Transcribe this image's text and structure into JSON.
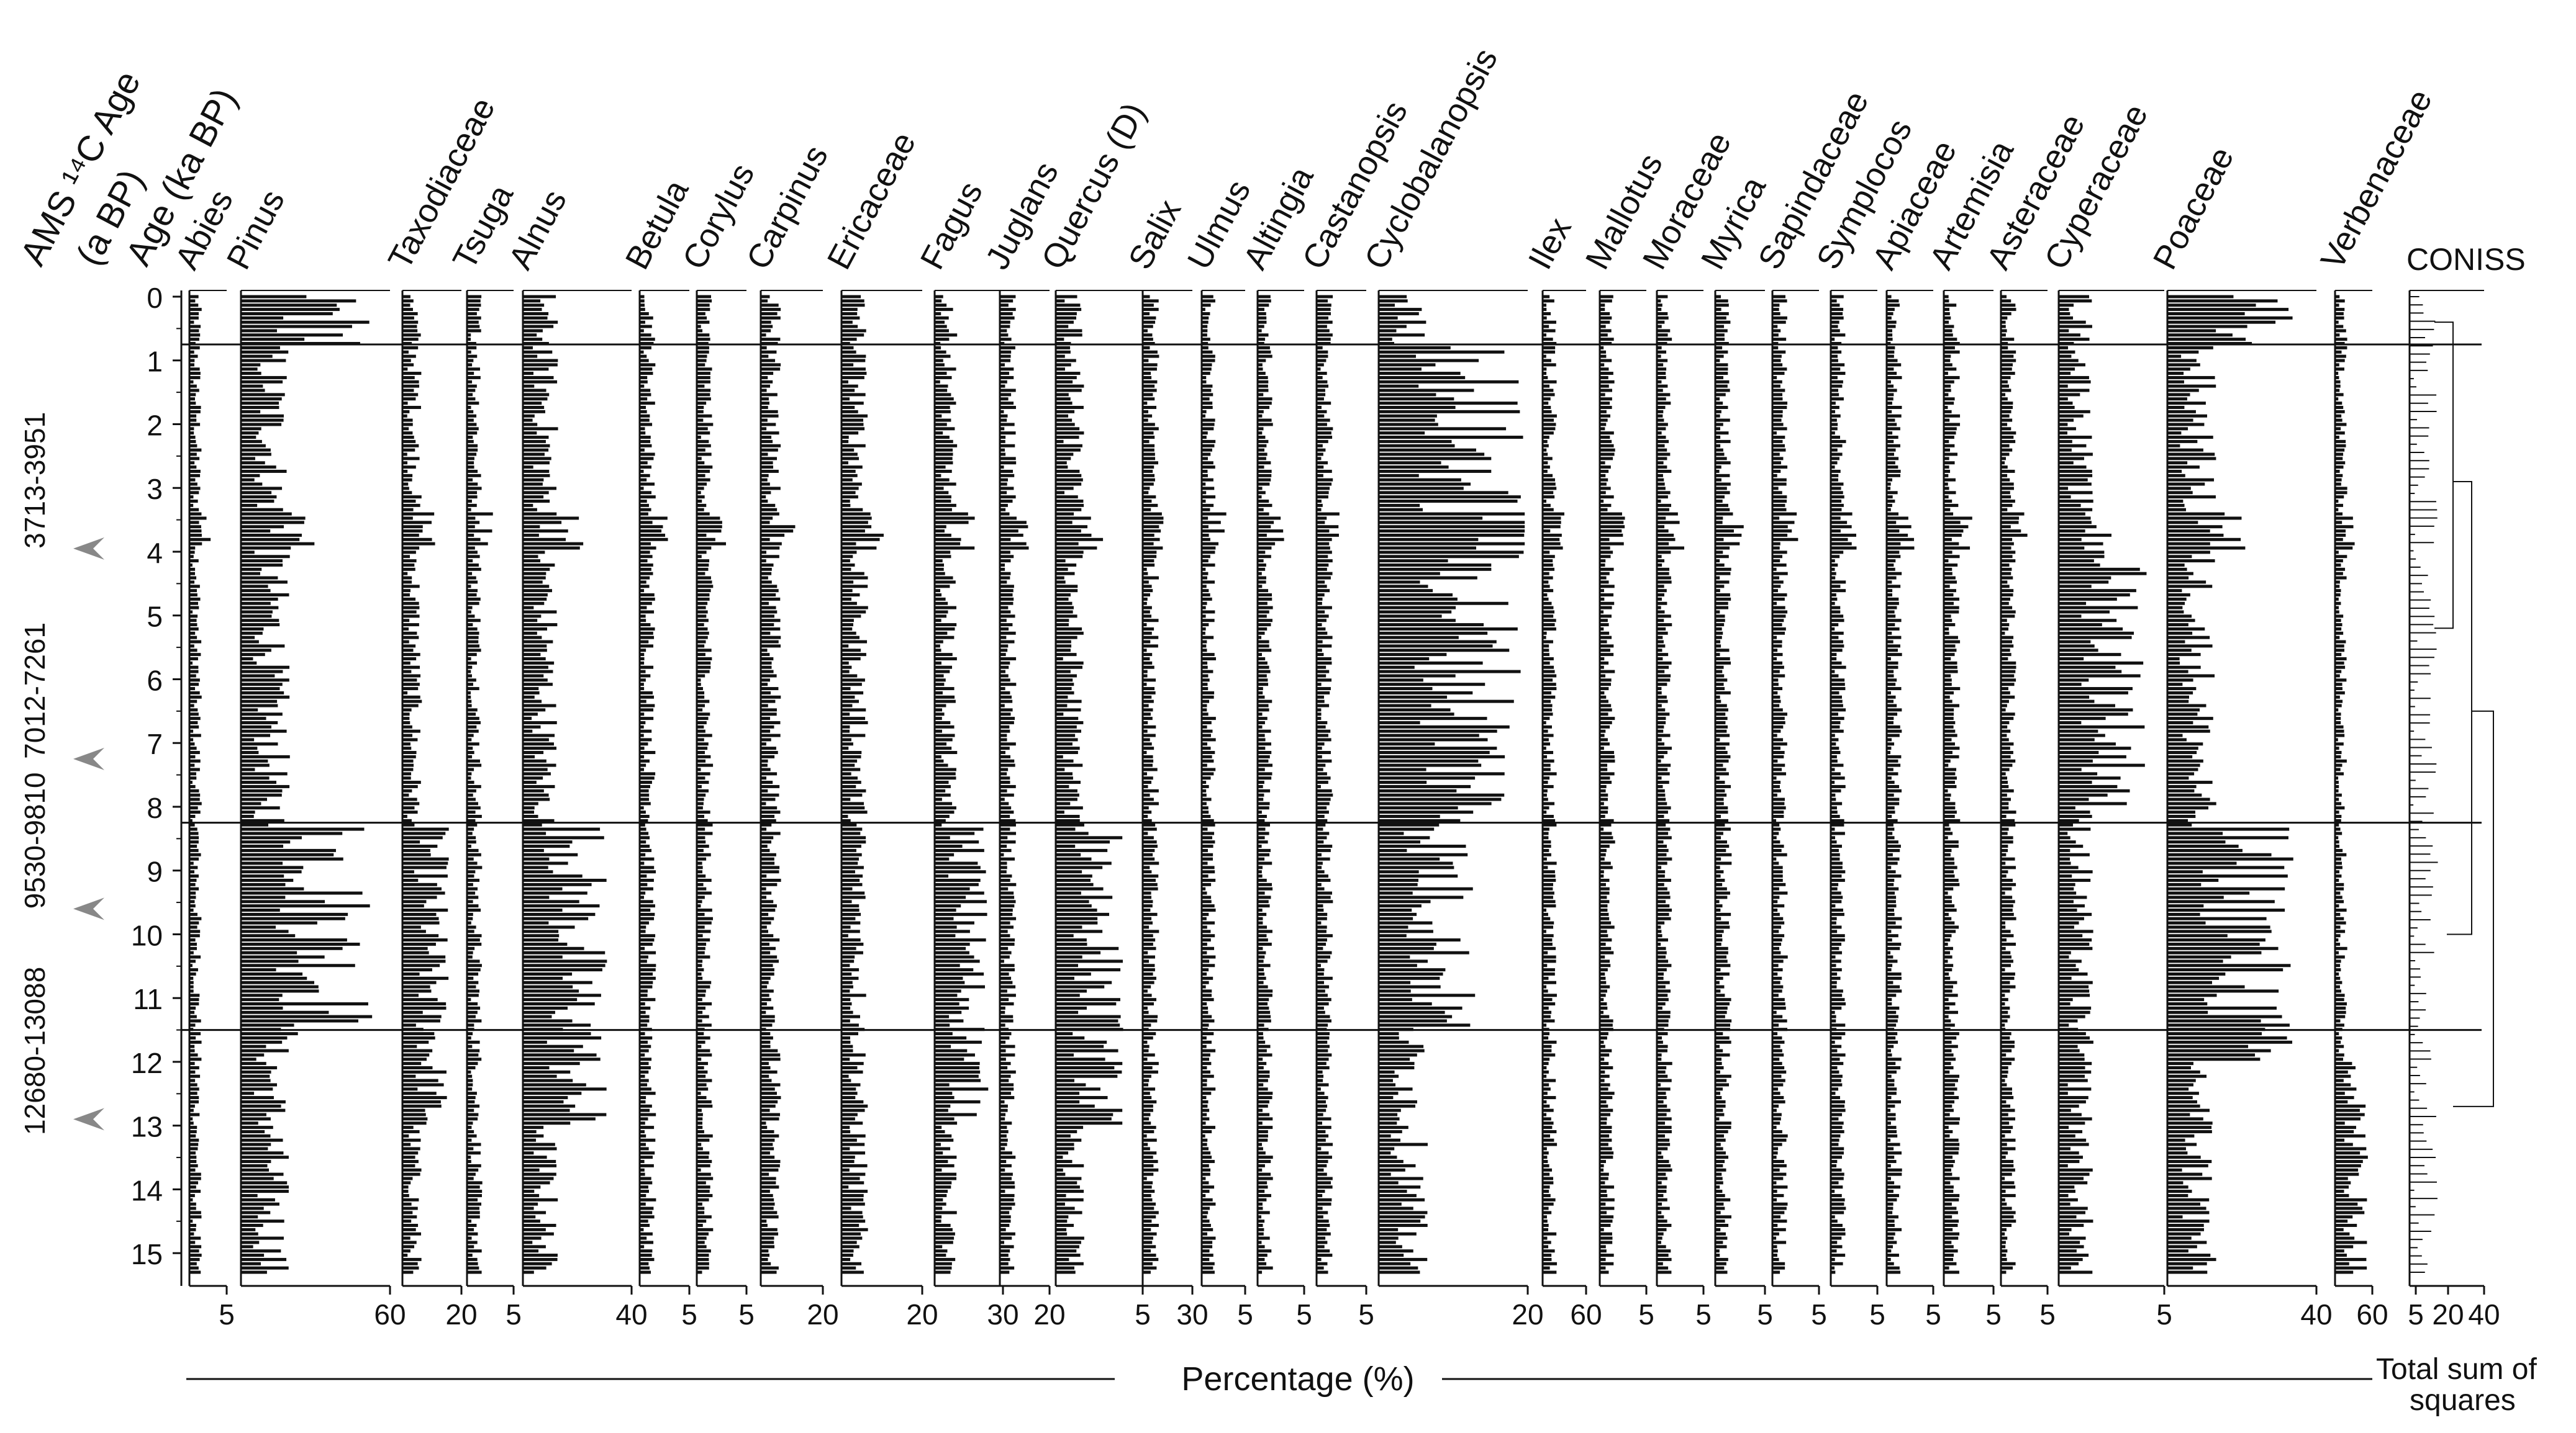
{
  "chart_data": {
    "type": "pollen_diagram",
    "title": "",
    "ylabel": "Age (ka BP)",
    "ylim": [
      15.3,
      0
    ],
    "xlabel": "Percentage (%)",
    "age_header_label_1": "AMS ¹⁴C Age",
    "age_header_label_2": "(a BP)",
    "age_header_label_3": "Age (ka BP)",
    "age_ticks": [
      "0",
      "1",
      "2",
      "3",
      "4",
      "5",
      "6",
      "7",
      "8",
      "9",
      "10",
      "11",
      "12",
      "13",
      "14",
      "15"
    ],
    "dated_samples": [
      {
        "label": "3713-3951",
        "age": 3.95
      },
      {
        "label": "7012-7261",
        "age": 7.25
      },
      {
        "label": "9530-9810",
        "age": 9.6
      },
      {
        "label": "12680-13088",
        "age": 12.9
      }
    ],
    "zone_boundaries": [
      0.75,
      8.25,
      11.5
    ],
    "taxa": [
      {
        "name": "Abies",
        "max": 5,
        "axis_labels": [
          "5"
        ],
        "values": []
      },
      {
        "name": "Pinus",
        "max": 60,
        "axis_labels": [
          "60"
        ],
        "values": []
      },
      {
        "name": "Taxodiaceae",
        "max": 20,
        "axis_labels": [
          "20"
        ],
        "values": []
      },
      {
        "name": "Tsuga",
        "max": 5,
        "axis_labels": [
          "5"
        ],
        "values": []
      },
      {
        "name": "Alnus",
        "max": 40,
        "axis_labels": [
          "40"
        ],
        "values": []
      },
      {
        "name": "Betula",
        "max": 5,
        "axis_labels": [
          "5"
        ],
        "values": []
      },
      {
        "name": "Corylus",
        "max": 5,
        "axis_labels": [
          "5"
        ],
        "values": []
      },
      {
        "name": "Carpinus",
        "max": 20,
        "axis_labels": [
          "20"
        ],
        "values": []
      },
      {
        "name": "Ericaceae",
        "max": 20,
        "axis_labels": [
          "20"
        ],
        "values": []
      },
      {
        "name": "Fagus",
        "max": 30,
        "axis_labels": [
          "30"
        ],
        "values": []
      },
      {
        "name": "Juglans",
        "max": 20,
        "axis_labels": [
          "20"
        ],
        "values": []
      },
      {
        "name": "Quercus (D)",
        "max": 5,
        "axis_labels": [
          "5"
        ],
        "values": []
      },
      {
        "name": "Salix",
        "max": 30,
        "axis_labels": [
          "30"
        ],
        "values": []
      },
      {
        "name": "Ulmus",
        "max": 5,
        "axis_labels": [
          "5"
        ],
        "values": []
      },
      {
        "name": "Altingia",
        "max": 5,
        "axis_labels": [
          "5"
        ],
        "values": []
      },
      {
        "name": "Castanopsis",
        "max": 5,
        "axis_labels": [
          "5"
        ],
        "values": []
      },
      {
        "name": "Cyclobalanopsis",
        "max": 20,
        "axis_labels": [
          "20"
        ],
        "values": []
      },
      {
        "name": "Ilex",
        "max": 60,
        "axis_labels": [
          "60"
        ],
        "values": []
      },
      {
        "name": "Mallotus",
        "max": 5,
        "axis_labels": [
          "5"
        ],
        "values": []
      },
      {
        "name": "Moraceae",
        "max": 5,
        "axis_labels": [
          "5"
        ],
        "values": []
      },
      {
        "name": "Myrica",
        "max": 5,
        "axis_labels": [
          "5"
        ],
        "values": []
      },
      {
        "name": "Sapindaceae",
        "max": 5,
        "axis_labels": [
          "5"
        ],
        "values": []
      },
      {
        "name": "Symplocos",
        "max": 5,
        "axis_labels": [
          "5"
        ],
        "values": []
      },
      {
        "name": "Apiaceae",
        "max": 5,
        "axis_labels": [
          "5"
        ],
        "values": []
      },
      {
        "name": "Artemisia",
        "max": 5,
        "axis_labels": [
          "5"
        ],
        "values": []
      },
      {
        "name": "Asteraceae",
        "max": 5,
        "axis_labels": [
          "5"
        ],
        "values": []
      },
      {
        "name": "Cyperaceae",
        "max": 5,
        "axis_labels": [
          "5"
        ],
        "values": []
      },
      {
        "name": "Poaceae",
        "max": 40,
        "axis_labels": [
          "40"
        ],
        "values": []
      },
      {
        "name": "Verbenaceae",
        "max": 60,
        "axis_labels": [
          "60"
        ],
        "values": []
      }
    ],
    "coniss": {
      "label": "CONISS",
      "axis_title_1": "Total sum of",
      "axis_title_2": "squares",
      "axis_labels": [
        "5",
        "20",
        "40"
      ]
    }
  }
}
